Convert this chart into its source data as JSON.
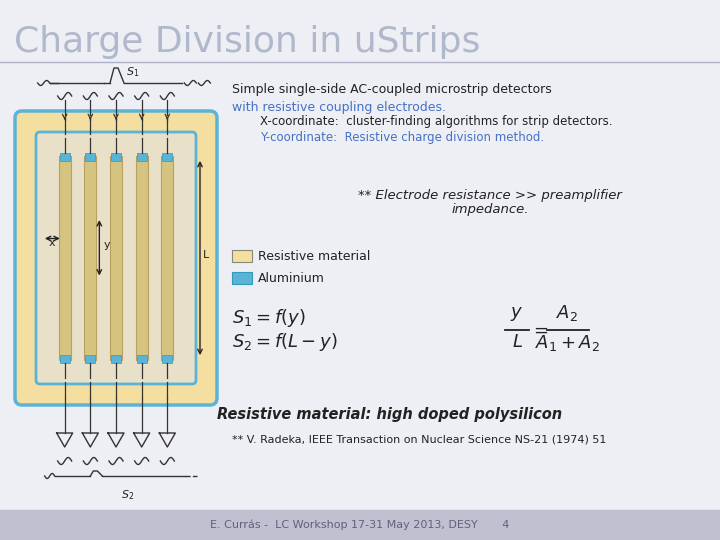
{
  "title": "Charge Division in uStrips",
  "title_color": "#b0b8cc",
  "bg_color": "#eeeef5",
  "footer_bg": "#c0c0d0",
  "footer_text": "E. Currás -  LC Workshop 17-31 May 2013, DESY       4",
  "footer_color": "#606080",
  "text_black": "#222222",
  "text_blue": "#4472c4",
  "text_teal": "#4472c4",
  "line1": "Simple single-side AC-coupled microstrip detectors",
  "line2": "with resistive coupling electrodes.",
  "line3": "X-coordinate:  cluster-finding algorithms for strip detectors.",
  "line4": "Y-coordinate:  Resistive charge division method.",
  "legend1": "Resistive material",
  "legend2": "Aluminium",
  "electrode_note1": "** Electrode resistance >> preamplifier",
  "electrode_note2": "impedance.",
  "bold_italic": "Resistive material: high doped polysilicon",
  "ref": "** V. Radeka, IEEE Transaction on Nuclear Science NS-21 (1974) 51",
  "color_resistive": "#f5dfa0",
  "color_aluminium": "#5ab4d8",
  "color_border": "#5ab4d8",
  "color_strip": "#d4c480",
  "color_strip_dark": "#b8a060",
  "color_inner_bg": "#e8e0c8"
}
